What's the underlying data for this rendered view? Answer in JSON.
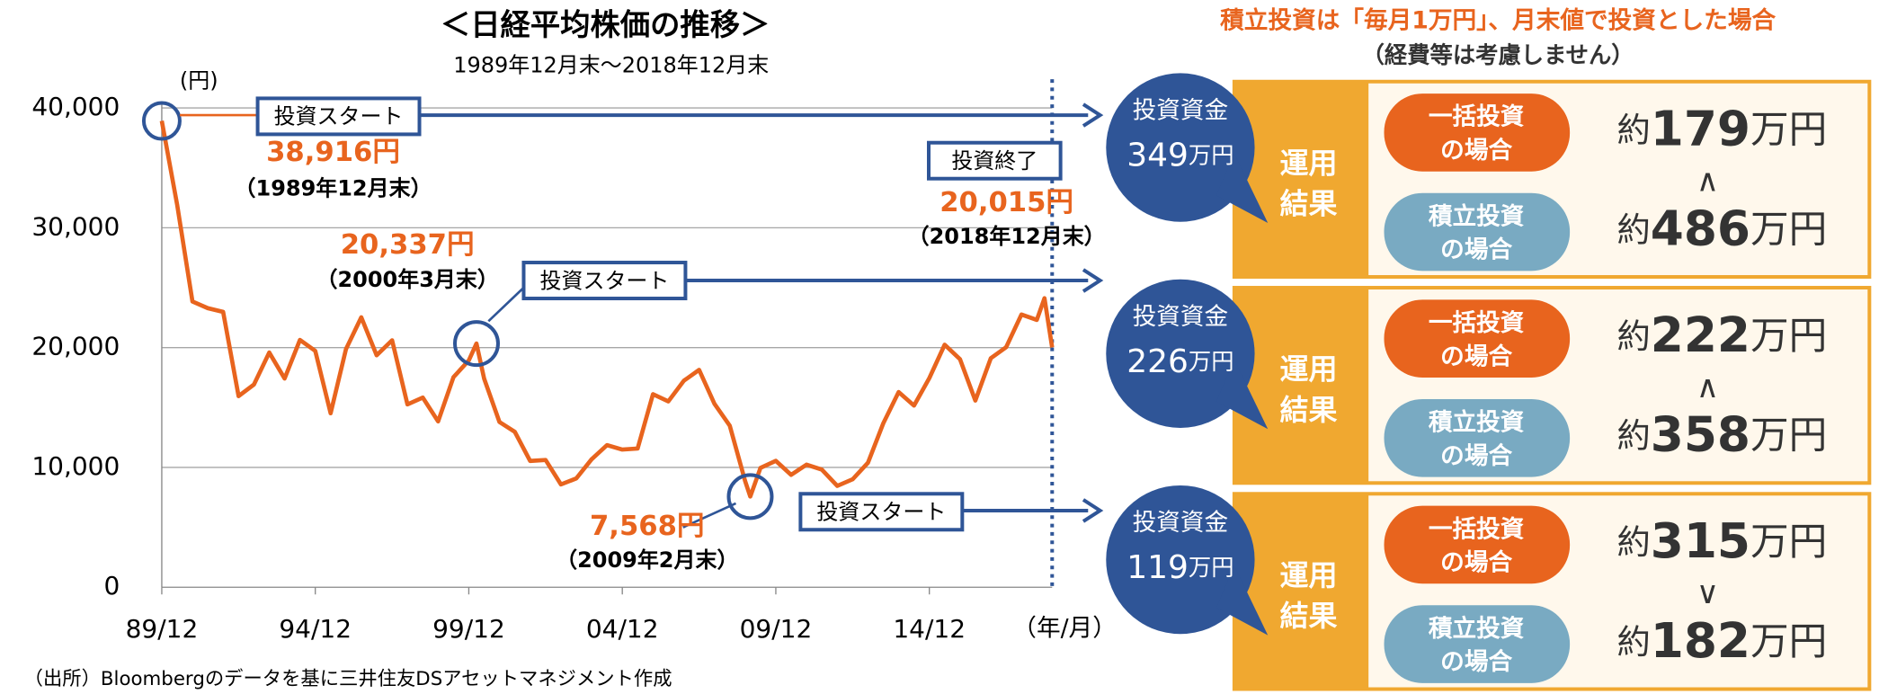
{
  "chart_data": {
    "type": "line",
    "title": "＜日経平均株価の推移＞",
    "subtitle": "1989年12月末～2018年12月末",
    "y_axis_label": "(円)",
    "x_axis_label": "（年/月）",
    "color": "#e8641e",
    "x": [
      "1989-12",
      "1990-06",
      "1990-12",
      "1991-06",
      "1991-12",
      "1992-06",
      "1992-12",
      "1993-06",
      "1993-12",
      "1994-06",
      "1994-12",
      "1995-06",
      "1995-12",
      "1996-06",
      "1996-12",
      "1997-06",
      "1997-12",
      "1998-06",
      "1998-12",
      "1999-06",
      "1999-12",
      "2000-03",
      "2000-06",
      "2000-12",
      "2001-06",
      "2001-12",
      "2002-06",
      "2002-12",
      "2003-06",
      "2003-12",
      "2004-06",
      "2004-12",
      "2005-06",
      "2005-12",
      "2006-06",
      "2006-12",
      "2007-06",
      "2007-12",
      "2008-06",
      "2008-12",
      "2009-02",
      "2009-06",
      "2009-12",
      "2010-06",
      "2010-12",
      "2011-06",
      "2011-12",
      "2012-06",
      "2012-12",
      "2013-06",
      "2013-12",
      "2014-06",
      "2014-12",
      "2015-06",
      "2015-12",
      "2016-06",
      "2016-12",
      "2017-06",
      "2017-12",
      "2018-06",
      "2018-09",
      "2018-12"
    ],
    "values": [
      38916,
      31940,
      23849,
      23290,
      22984,
      15952,
      16925,
      19590,
      17417,
      20644,
      19723,
      14517,
      19868,
      22531,
      19361,
      20605,
      15259,
      15830,
      13842,
      17530,
      18934,
      20337,
      17411,
      13786,
      12969,
      10543,
      10622,
      8579,
      9083,
      10677,
      11859,
      11489,
      11584,
      16111,
      15505,
      17226,
      18138,
      15308,
      13481,
      8860,
      7568,
      9958,
      10546,
      9383,
      10229,
      9816,
      8455,
      9007,
      10395,
      13677,
      16291,
      15162,
      17451,
      20236,
      19034,
      15576,
      19114,
      20033,
      22765,
      22305,
      24120,
      20015
    ],
    "xlim": [
      "1989-12",
      "2018-12"
    ],
    "xticks": [
      {
        "value": "1989-12",
        "label": "89/12"
      },
      {
        "value": "1994-12",
        "label": "94/12"
      },
      {
        "value": "1999-12",
        "label": "99/12"
      },
      {
        "value": "2004-12",
        "label": "04/12"
      },
      {
        "value": "2009-12",
        "label": "09/12"
      },
      {
        "value": "2014-12",
        "label": "14/12"
      }
    ],
    "ylim": [
      0,
      40000
    ],
    "yticks": [
      0,
      {
        "value": 10000,
        "label": "10,000"
      },
      {
        "value": 20000,
        "label": "20,000"
      },
      {
        "value": 30000,
        "label": "30,000"
      },
      {
        "value": 40000,
        "label": "40,000"
      }
    ],
    "grid": true,
    "annotations": [
      {
        "value": 38916,
        "label": "38,916円",
        "date": "（1989年12月末）",
        "box": "投資スタート"
      },
      {
        "value": 20337,
        "label": "20,337円",
        "date": "（2000年3月末）",
        "box": "投資スタート"
      },
      {
        "value": 7568,
        "label": "7,568円",
        "date": "（2009年2月末）",
        "box": "投資スタート"
      }
    ],
    "end": {
      "value": 20015,
      "label": "20,015円",
      "date": "（2018年12月末）",
      "box": "投資終了"
    },
    "source": "（出所）Bloombergのデータを基に三井住友DSアセットマネジメント作成"
  },
  "panel": {
    "title": "積立投資は「毎月1万円」、月末値で投資とした場合",
    "subtitle": "（経費等は考慮しません）",
    "fund_label": "投資資金",
    "unit": "万円",
    "result": "運用結果",
    "lump": "一括投資の場合",
    "accum": "積立投資の場合",
    "approx": "約",
    "rows": [
      {
        "fund": "349",
        "lump_amount": "179",
        "compare": "∧",
        "accum_amount": "486"
      },
      {
        "fund": "226",
        "lump_amount": "222",
        "compare": "∧",
        "accum_amount": "358"
      },
      {
        "fund": "119",
        "lump_amount": "315",
        "compare": "∨",
        "accum_amount": "182"
      }
    ]
  }
}
